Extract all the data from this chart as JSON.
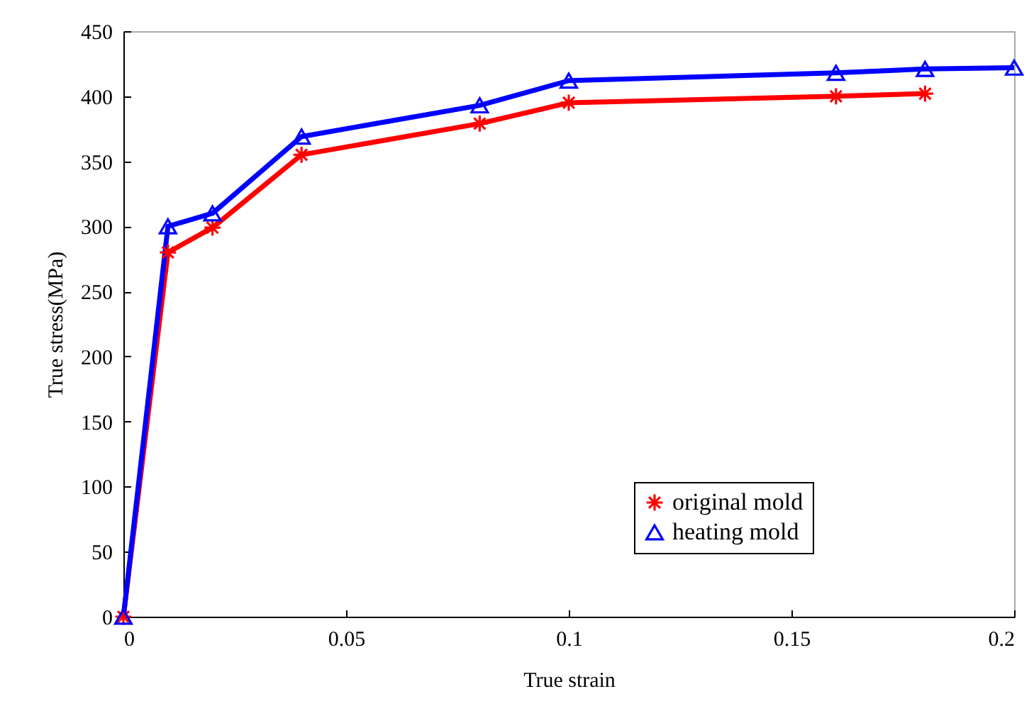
{
  "chart_data": {
    "type": "line",
    "xlabel": "True strain",
    "ylabel": "True stress(MPa)",
    "xlim": [
      0,
      0.2
    ],
    "xticks": [
      0,
      0.05,
      0.1,
      0.15,
      0.2
    ],
    "ylim": [
      0,
      450
    ],
    "yticks": [
      0,
      50,
      100,
      150,
      200,
      250,
      300,
      350,
      400,
      450
    ],
    "grid": false,
    "legend": "bottom right",
    "line_style": "solid",
    "series": [
      {
        "name": "original mold",
        "color": "#ff0000",
        "marker": "cross",
        "x": [
          0,
          0.01,
          0.02,
          0.04,
          0.08,
          0.1,
          0.16,
          0.18
        ],
        "values": [
          0,
          280,
          299,
          355,
          379,
          395,
          400,
          402
        ]
      },
      {
        "name": "heating mold",
        "color": "#0000ff",
        "marker": "triangle",
        "x": [
          0,
          0.01,
          0.02,
          0.04,
          0.08,
          0.1,
          0.16,
          0.18,
          0.2
        ],
        "values": [
          0,
          300,
          310,
          369,
          393,
          412,
          418,
          421,
          422
        ]
      }
    ]
  }
}
